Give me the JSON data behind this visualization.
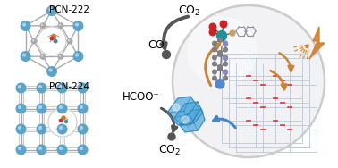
{
  "background_color": "#ffffff",
  "pcn222_label": "PCN-222",
  "pcn224_label": "PCN-224",
  "co2_label_top": "CO₂",
  "co_label": "CO",
  "hcoo_label": "HCOO⁻",
  "co2_label_bot": "CO₂",
  "node_color": "#5ba3c9",
  "linker_color": "#aaaaaa",
  "sphere_color": "#e8e8ec",
  "arrow_dark": "#555555",
  "arrow_blue": "#4488cc",
  "arrow_orange": "#c8853a",
  "lightning_color": "#d08030",
  "atom_gray": "#808080",
  "atom_red": "#cc2222",
  "atom_teal": "#2090a0",
  "atom_tan": "#c8a060",
  "atom_blue_light": "#6699cc"
}
